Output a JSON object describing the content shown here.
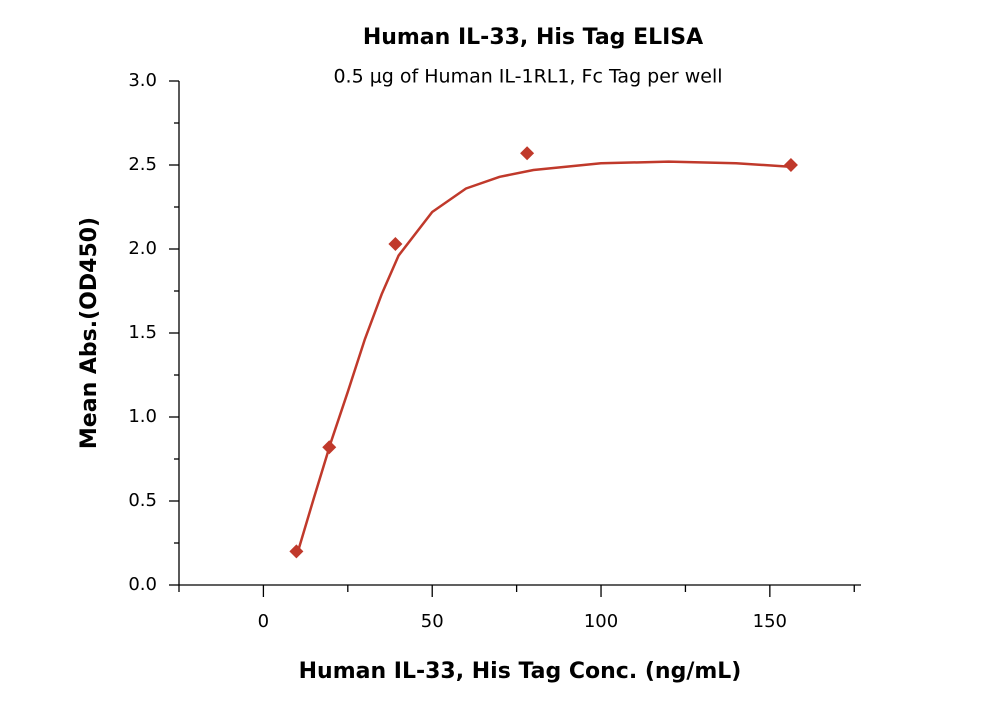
{
  "chart_data": {
    "type": "scatter",
    "title": "Human IL-33, His Tag ELISA",
    "subtitle": "0.5 μg of Human IL-1RL1, Fc Tag per well",
    "x_label": "Human IL-33, His Tag Conc. (ng/mL)",
    "y_label": "Mean Abs.(OD450)",
    "xlim": [
      -25,
      177
    ],
    "ylim": [
      0,
      3
    ],
    "xticks": [
      0,
      50,
      100,
      150
    ],
    "xminorticks": [
      -25,
      25,
      75,
      125,
      175
    ],
    "yticks": [
      {
        "value": 0,
        "label": "0.0"
      },
      {
        "value": 0.5,
        "label": "0.5"
      },
      {
        "value": 1,
        "label": "1.0"
      },
      {
        "value": 1.5,
        "label": "1.5"
      },
      {
        "value": 2,
        "label": "2.0"
      },
      {
        "value": 2.5,
        "label": "2.5"
      },
      {
        "value": 3,
        "label": "3.0"
      }
    ],
    "yminorticks": [
      0.25,
      0.75,
      1.25,
      1.75,
      2.25,
      2.75
    ],
    "series": [
      {
        "color": "#c0392b",
        "marker": "diamond",
        "x": [
          9.77,
          19.5,
          39.1,
          78.1,
          156.25
        ],
        "values": [
          0.2,
          0.82,
          2.03,
          2.57,
          2.5
        ]
      },
      {
        "color": "#c0392b",
        "marker": "line",
        "x": [
          9.8,
          15,
          20,
          25,
          30,
          35,
          40,
          50,
          60,
          70,
          80,
          100,
          120,
          140,
          156
        ],
        "values": [
          0.17,
          0.52,
          0.85,
          1.15,
          1.46,
          1.73,
          1.96,
          2.22,
          2.36,
          2.43,
          2.47,
          2.51,
          2.52,
          2.51,
          2.49
        ]
      }
    ]
  }
}
